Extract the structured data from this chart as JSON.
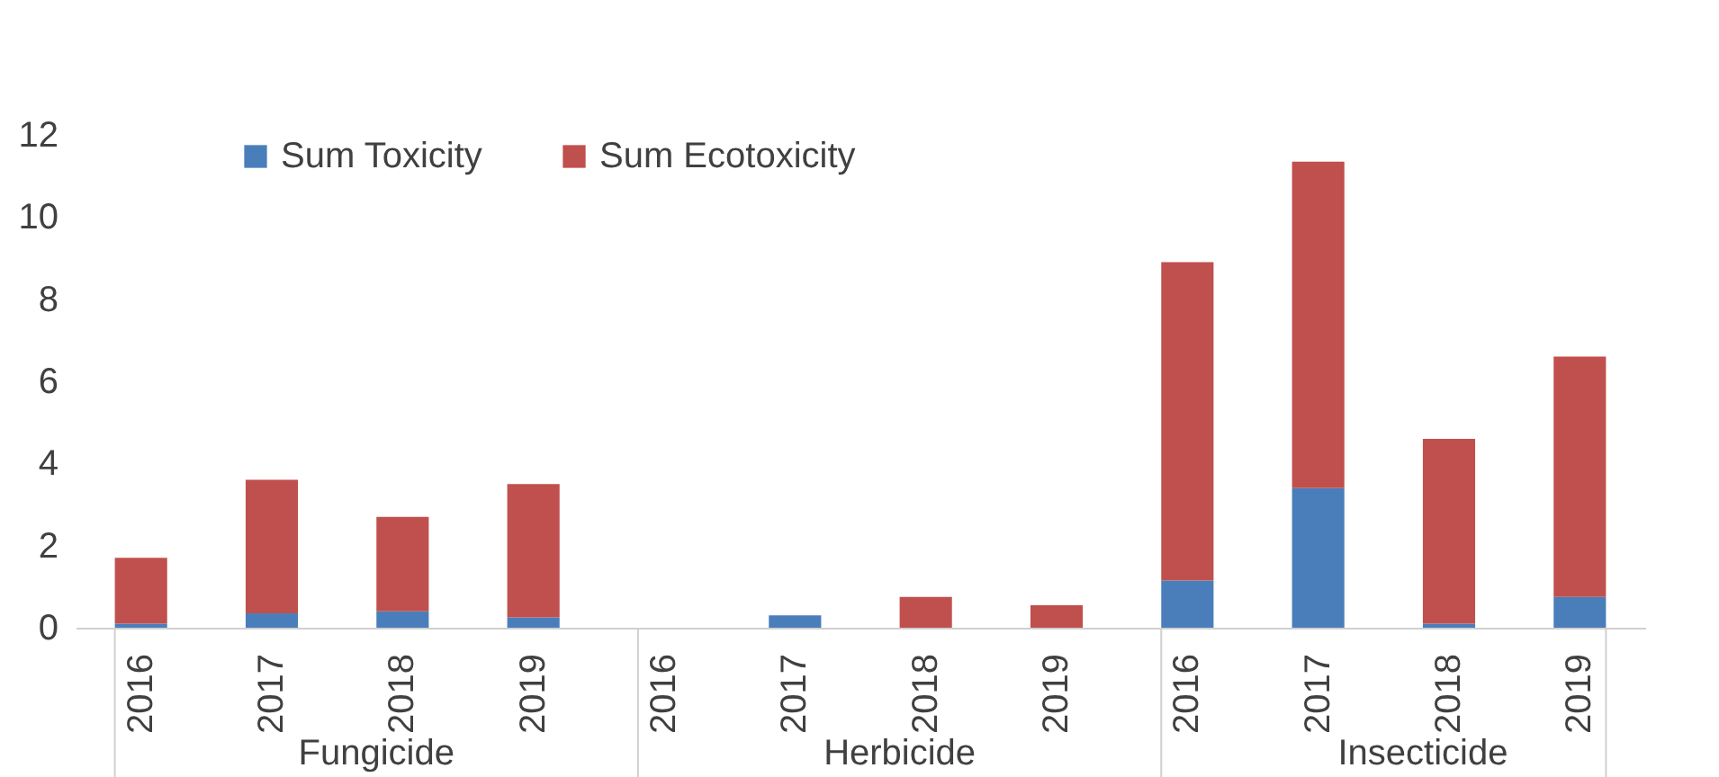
{
  "chart_data": {
    "type": "bar",
    "stacked": true,
    "categories": [
      "2016",
      "2017",
      "2018",
      "2019",
      "2016",
      "2017",
      "2018",
      "2019",
      "2016",
      "2017",
      "2018",
      "2019"
    ],
    "annotations": [
      "Fungicide",
      "Herbicide",
      "Insecticide"
    ],
    "series": [
      {
        "name": "Sum Toxicity",
        "color": "#4a7ebb",
        "values": [
          0.1,
          0.35,
          0.4,
          0.25,
          0,
          0.3,
          0,
          0,
          1.15,
          3.4,
          0.1,
          0.75
        ]
      },
      {
        "name": "Sum Ecotoxicity",
        "color": "#c0504d",
        "values": [
          1.6,
          3.25,
          2.3,
          3.25,
          0,
          0,
          0.75,
          0.55,
          7.75,
          7.95,
          4.5,
          5.85
        ]
      }
    ],
    "ylim": [
      0,
      12
    ],
    "yticks": [
      0,
      2,
      4,
      6,
      8,
      10,
      12
    ],
    "legend": "top left"
  }
}
